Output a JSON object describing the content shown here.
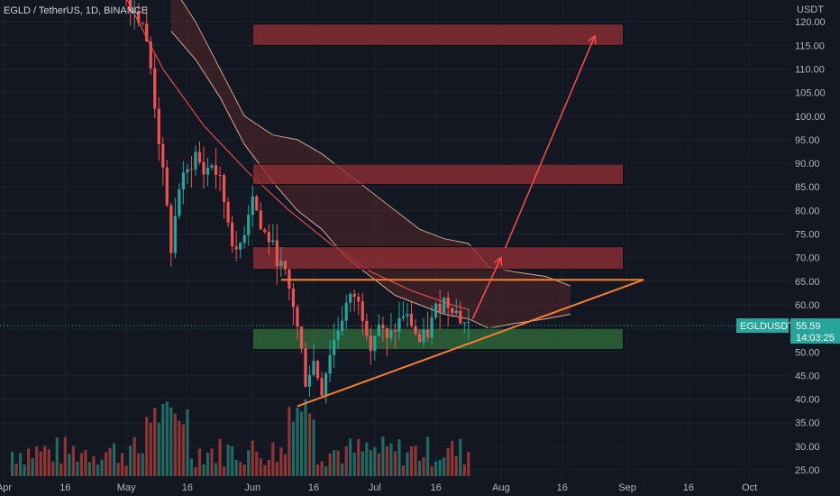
{
  "header": {
    "symbol_line": "EGLD / TetherUS, 1D, BINANCE"
  },
  "colors": {
    "background": "#131722",
    "grid": "#1e222d",
    "up": "#26a69a",
    "down": "#ef5350",
    "volume_up": "#1f6b63",
    "volume_down": "#8e3634",
    "red_zone_fill": "#8e2e33",
    "green_zone_fill": "#2e6b3a",
    "trend_orange": "#f57f30",
    "arrow_red": "#f24a4a",
    "ribbon_green": "#089981",
    "price_tag": "#26a69a"
  },
  "chart_data": {
    "type": "candlestick",
    "currency": "USDT",
    "ylim": [
      25,
      120
    ],
    "y_ticks": [
      "120.00",
      "115.00",
      "110.00",
      "105.00",
      "100.00",
      "95.00",
      "90.00",
      "85.00",
      "80.00",
      "75.00",
      "70.00",
      "65.00",
      "60.00",
      "55.00",
      "50.00",
      "45.00",
      "40.00",
      "35.00",
      "30.00",
      "25.00"
    ],
    "x_ticks": [
      "Apr",
      "16",
      "May",
      "16",
      "Jun",
      "16",
      "Jul",
      "16",
      "Aug",
      "16",
      "Sep",
      "16",
      "Oct"
    ],
    "x_tick_dates": [
      "2022-04-01",
      "2022-04-16",
      "2022-05-01",
      "2022-05-16",
      "2022-06-01",
      "2022-06-16",
      "2022-07-01",
      "2022-07-16",
      "2022-08-01",
      "2022-08-16",
      "2022-09-01",
      "2022-09-16",
      "2022-10-01"
    ],
    "last_price": {
      "symbol": "EGLDUSDT",
      "price": "55.59",
      "countdown": "14:03:25"
    },
    "price_path": [
      [
        "2022-05-01",
        125
      ],
      [
        "2022-05-05",
        120
      ],
      [
        "2022-05-07",
        110
      ],
      [
        "2022-05-09",
        95
      ],
      [
        "2022-05-11",
        80
      ],
      [
        "2022-05-12",
        72
      ],
      [
        "2022-05-14",
        85
      ],
      [
        "2022-05-16",
        88
      ],
      [
        "2022-05-18",
        92
      ],
      [
        "2022-05-20",
        88
      ],
      [
        "2022-05-22",
        90
      ],
      [
        "2022-05-24",
        86
      ],
      [
        "2022-05-26",
        78
      ],
      [
        "2022-05-28",
        70
      ],
      [
        "2022-05-30",
        76
      ],
      [
        "2022-06-01",
        84
      ],
      [
        "2022-06-03",
        76
      ],
      [
        "2022-06-05",
        74
      ],
      [
        "2022-06-07",
        70
      ],
      [
        "2022-06-09",
        66
      ],
      [
        "2022-06-11",
        60
      ],
      [
        "2022-06-13",
        50
      ],
      [
        "2022-06-14",
        44
      ],
      [
        "2022-06-16",
        48
      ],
      [
        "2022-06-18",
        42
      ],
      [
        "2022-06-20",
        50
      ],
      [
        "2022-06-22",
        55
      ],
      [
        "2022-06-24",
        60
      ],
      [
        "2022-06-26",
        62
      ],
      [
        "2022-06-28",
        58
      ],
      [
        "2022-06-30",
        52
      ],
      [
        "2022-07-02",
        56
      ],
      [
        "2022-07-04",
        52
      ],
      [
        "2022-07-06",
        55
      ],
      [
        "2022-07-08",
        58
      ],
      [
        "2022-07-10",
        56
      ],
      [
        "2022-07-12",
        52
      ],
      [
        "2022-07-14",
        54
      ],
      [
        "2022-07-16",
        59
      ],
      [
        "2022-07-18",
        61
      ],
      [
        "2022-07-20",
        60
      ],
      [
        "2022-07-22",
        57
      ],
      [
        "2022-07-24",
        55.59
      ]
    ],
    "zones": [
      {
        "kind": "resistance",
        "start": "2022-06-01",
        "end": "2022-08-31",
        "low": 115,
        "high": 119.5
      },
      {
        "kind": "resistance",
        "start": "2022-06-01",
        "end": "2022-08-31",
        "low": 85.5,
        "high": 89.8
      },
      {
        "kind": "resistance",
        "start": "2022-06-01",
        "end": "2022-08-31",
        "low": 67.5,
        "high": 72.3
      },
      {
        "kind": "support",
        "start": "2022-06-01",
        "end": "2022-08-31",
        "low": 50.5,
        "high": 55
      }
    ],
    "trendlines": [
      {
        "kind": "horizontal",
        "start": "2022-06-08",
        "end": "2022-09-05",
        "value": 65.3
      },
      {
        "kind": "rising",
        "start": "2022-06-12",
        "start_value": 38.5,
        "end": "2022-09-05",
        "end_value": 65.3
      }
    ],
    "arrows": [
      {
        "from": [
          "2022-07-25",
          57
        ],
        "to": [
          "2022-08-01",
          70
        ]
      },
      {
        "from": [
          "2022-08-02",
          72
        ],
        "to": [
          "2022-08-24",
          117
        ]
      }
    ],
    "cloud": {
      "upper": [
        [
          "2022-05-12",
          128
        ],
        [
          "2022-05-18",
          120
        ],
        [
          "2022-05-24",
          110
        ],
        [
          "2022-05-30",
          100
        ],
        [
          "2022-06-06",
          96
        ],
        [
          "2022-06-12",
          95
        ],
        [
          "2022-06-18",
          92
        ],
        [
          "2022-06-24",
          88
        ],
        [
          "2022-06-30",
          84
        ],
        [
          "2022-07-06",
          80
        ],
        [
          "2022-07-12",
          76
        ],
        [
          "2022-07-18",
          74
        ],
        [
          "2022-07-24",
          73
        ],
        [
          "2022-07-29",
          68
        ],
        [
          "2022-08-04",
          67
        ],
        [
          "2022-08-12",
          66
        ],
        [
          "2022-08-18",
          64
        ]
      ],
      "lower": [
        [
          "2022-05-12",
          118
        ],
        [
          "2022-05-18",
          112
        ],
        [
          "2022-05-24",
          104
        ],
        [
          "2022-05-30",
          94
        ],
        [
          "2022-06-06",
          86
        ],
        [
          "2022-06-12",
          80
        ],
        [
          "2022-06-18",
          76
        ],
        [
          "2022-06-24",
          70
        ],
        [
          "2022-06-30",
          66
        ],
        [
          "2022-07-06",
          62
        ],
        [
          "2022-07-12",
          60
        ],
        [
          "2022-07-18",
          58
        ],
        [
          "2022-07-24",
          57
        ],
        [
          "2022-07-29",
          55
        ],
        [
          "2022-08-04",
          56
        ],
        [
          "2022-08-12",
          57
        ],
        [
          "2022-08-18",
          58
        ]
      ]
    },
    "moving_average": [
      [
        "2022-05-01",
        125
      ],
      [
        "2022-05-10",
        110
      ],
      [
        "2022-05-20",
        98
      ],
      [
        "2022-05-31",
        88
      ],
      [
        "2022-06-10",
        80
      ],
      [
        "2022-06-20",
        73
      ],
      [
        "2022-06-30",
        67
      ],
      [
        "2022-07-10",
        63
      ],
      [
        "2022-07-20",
        60
      ],
      [
        "2022-07-24",
        59
      ]
    ]
  }
}
